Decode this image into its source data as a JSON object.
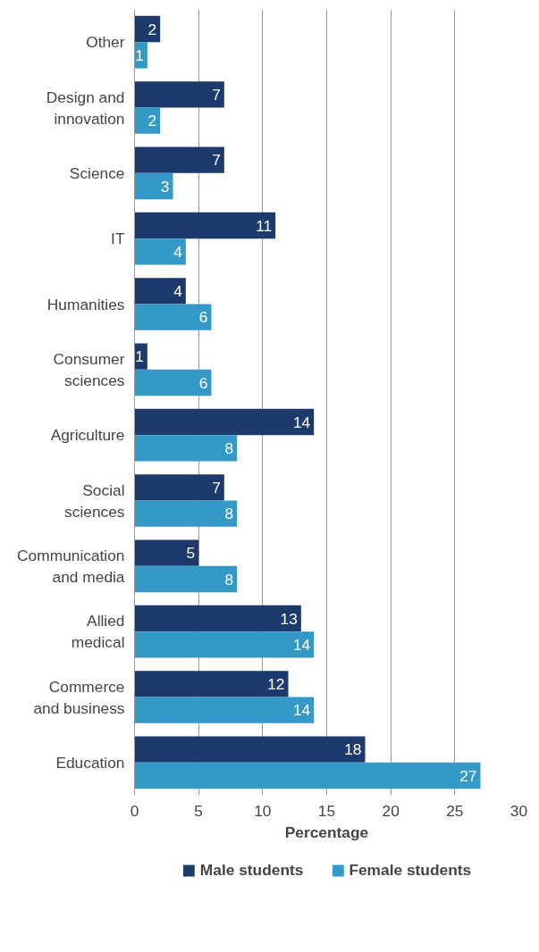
{
  "chart_data": {
    "type": "bar",
    "orientation": "horizontal",
    "xlabel": "Percentage",
    "categories": [
      "Other",
      "Design and\ninnovation",
      "Science",
      "IT",
      "Humanities",
      "Consumer\nsciences",
      "Agriculture",
      "Social\nsciences",
      "Communication\nand media",
      "Allied\nmedical",
      "Commerce\nand business",
      "Education"
    ],
    "series": [
      {
        "name": "Male students",
        "color": "#1c3a6b",
        "values": [
          2,
          7,
          7,
          11,
          4,
          1,
          14,
          7,
          5,
          13,
          12,
          18
        ]
      },
      {
        "name": "Female students",
        "color": "#3499c7",
        "values": [
          1,
          2,
          3,
          4,
          6,
          6,
          8,
          8,
          8,
          14,
          14,
          27
        ]
      }
    ],
    "xlim": [
      0,
      30
    ],
    "xticks": [
      0,
      5,
      10,
      15,
      20,
      25,
      30
    ],
    "grid": "x",
    "legend": "bottom",
    "data_labels": true
  }
}
